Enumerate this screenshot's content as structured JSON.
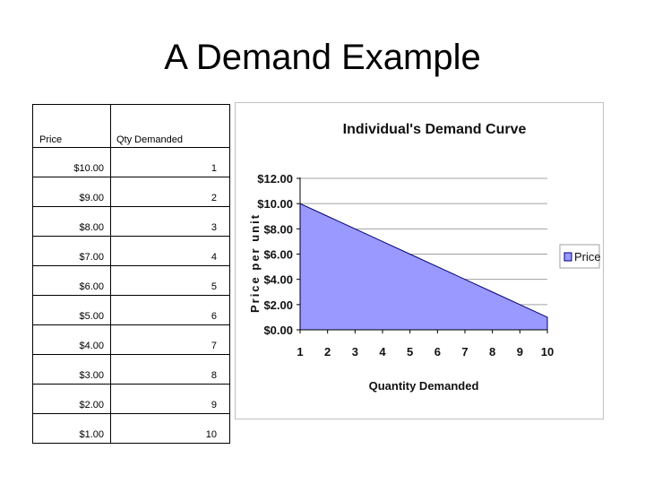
{
  "slide": {
    "title": "A Demand Example"
  },
  "table": {
    "headers": [
      "Price",
      "Qty Demanded"
    ],
    "rows": [
      [
        "$10.00",
        "1"
      ],
      [
        "$9.00",
        "2"
      ],
      [
        "$8.00",
        "3"
      ],
      [
        "$7.00",
        "4"
      ],
      [
        "$6.00",
        "5"
      ],
      [
        "$5.00",
        "6"
      ],
      [
        "$4.00",
        "7"
      ],
      [
        "$3.00",
        "8"
      ],
      [
        "$2.00",
        "9"
      ],
      [
        "$1.00",
        "10"
      ]
    ]
  },
  "chart_data": {
    "type": "area",
    "title": "Individual's Demand Curve",
    "xlabel": "Quantity Demanded",
    "ylabel": "Price per unit",
    "x": [
      1,
      2,
      3,
      4,
      5,
      6,
      7,
      8,
      9,
      10
    ],
    "series": [
      {
        "name": "Price",
        "values": [
          10,
          9,
          8,
          7,
          6,
          5,
          4,
          3,
          2,
          1
        ],
        "color": "#9999ff"
      }
    ],
    "ylim": [
      0,
      12
    ],
    "yticks": [
      "$0.00",
      "$2.00",
      "$4.00",
      "$6.00",
      "$8.00",
      "$10.00",
      "$12.00"
    ],
    "xticks": [
      "1",
      "2",
      "3",
      "4",
      "5",
      "6",
      "7",
      "8",
      "9",
      "10"
    ],
    "grid": true,
    "legend": "right"
  }
}
